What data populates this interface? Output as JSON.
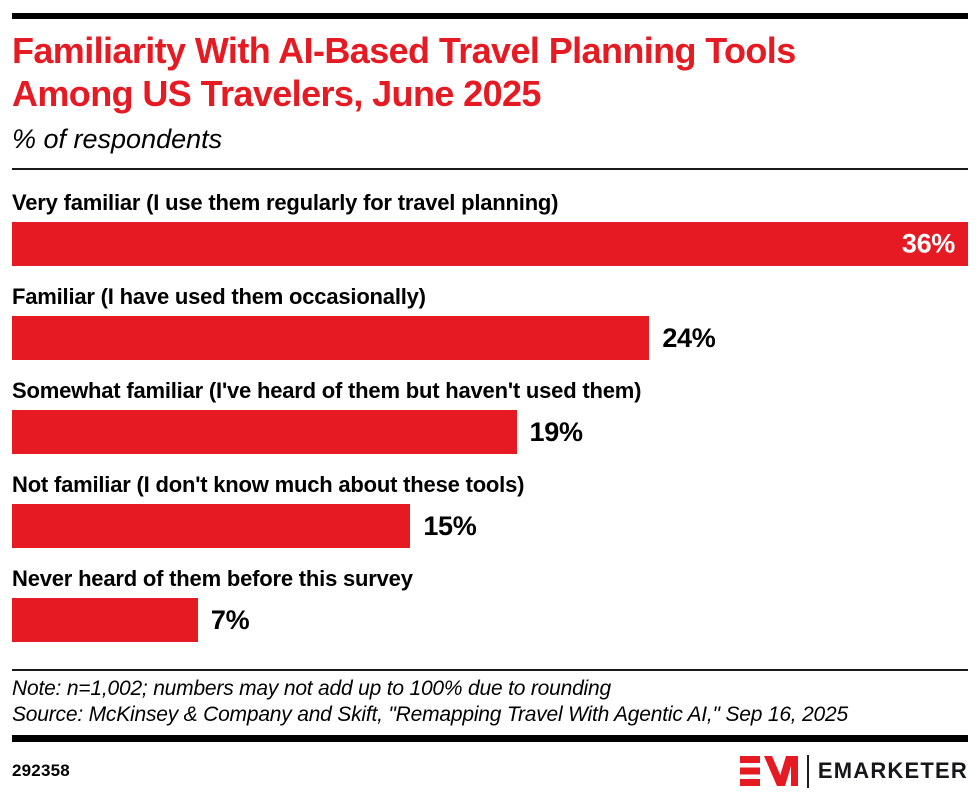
{
  "header": {
    "title_line1": "Familiarity With AI-Based Travel Planning Tools",
    "title_line2": "Among US Travelers, June 2025",
    "subtitle": "% of respondents"
  },
  "chart_data": {
    "type": "bar",
    "orientation": "horizontal",
    "title": "Familiarity With AI-Based Travel Planning Tools Among US Travelers, June 2025",
    "xlabel": "",
    "ylabel": "% of respondents",
    "categories": [
      "Very familiar (I use them regularly for travel planning)",
      "Familiar (I have used them occasionally)",
      "Somewhat familiar (I've heard of them but haven't used them)",
      "Not familiar (I don't know much about these tools)",
      "Never heard of them before this survey"
    ],
    "values": [
      36,
      24,
      19,
      15,
      7
    ],
    "value_labels": [
      "36%",
      "24%",
      "19%",
      "15%",
      "7%"
    ],
    "scale_max": 36,
    "grid": false,
    "legend": "none",
    "bar_color": "#E61A22"
  },
  "footnote": {
    "note": "Note: n=1,002; numbers may not add up to 100% due to rounding",
    "source": "Source: McKinsey & Company and Skift, \"Remapping Travel With Agentic AI,\" Sep 16, 2025"
  },
  "footer": {
    "chart_id": "292358",
    "brand": "EMARKETER"
  },
  "colors": {
    "accent_red": "#E61A22",
    "text": "#000000",
    "rule_black": "#000000"
  }
}
